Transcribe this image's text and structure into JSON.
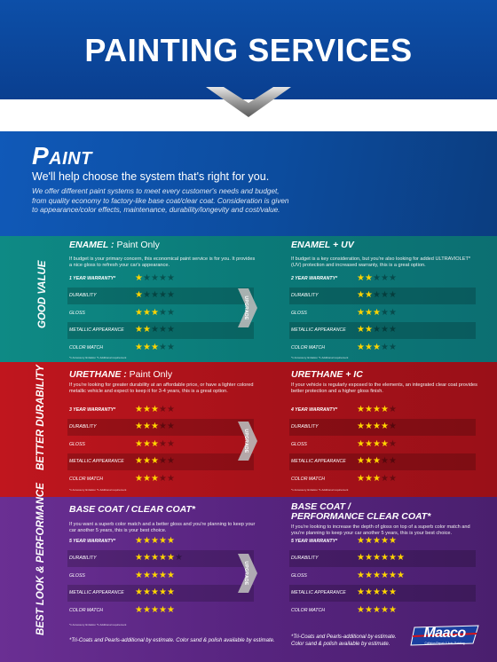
{
  "header": {
    "title": "PAINTING SERVICES"
  },
  "paint": {
    "title": "Paint",
    "subtitle": "We'll help choose the system that's right for you.",
    "description": "We offer different paint systems to meet every customer's needs and budget, from quality economy to factory-like base coat/clear coat. Consideration is given to appearance/color effects, maintenance, durability/longevity and cost/value."
  },
  "upgrade_label": "UPGRADE",
  "sections": {
    "good": {
      "side_label": "GOOD VALUE",
      "left": {
        "title_main": "ENAMEL :",
        "title_thin": " Paint Only",
        "description": "If budget is your primary concern, this economical paint service is for you. It provides a nice gloss to refresh your car's appearance.",
        "fineprint": "*1 Accessory limitation  *1 Additional requirement",
        "rows": [
          {
            "label": "1 YEAR WARRANTY*",
            "bold": true,
            "stars": 1
          },
          {
            "label": "DURABILITY",
            "bold": false,
            "stars": 1
          },
          {
            "label": "GLOSS",
            "bold": false,
            "stars": 3
          },
          {
            "label": "METALLIC APPEARANCE",
            "bold": false,
            "stars": 2
          },
          {
            "label": "COLOR MATCH",
            "bold": false,
            "stars": 3
          }
        ]
      },
      "right": {
        "title_main": "ENAMEL + UV",
        "title_thin": "",
        "description": "If budget is a key consideration, but you're also looking for added ULTRAVIOLET* (UV) protection and increased warranty, this is a great option.",
        "fineprint": "*1 Accessory limitation  *1 Additional requirement",
        "rows": [
          {
            "label": "2 YEAR WARRANTY*",
            "bold": true,
            "stars": 2
          },
          {
            "label": "DURABILITY",
            "bold": false,
            "stars": 2
          },
          {
            "label": "GLOSS",
            "bold": false,
            "stars": 3
          },
          {
            "label": "METALLIC APPEARANCE",
            "bold": false,
            "stars": 2
          },
          {
            "label": "COLOR MATCH",
            "bold": false,
            "stars": 3
          }
        ]
      }
    },
    "better": {
      "side_label": "BETTER DURABILITY",
      "left": {
        "title_main": "URETHANE :",
        "title_thin": " Paint Only",
        "description": "If you're looking for greater durability at an affordable price, or have a lighter colored metallic vehicle and expect to keep it for 3-4 years, this is a great option.",
        "fineprint": "*1 Accessory limitation  *1 Additional requirement",
        "rows": [
          {
            "label": "3 YEAR WARRANTY*",
            "bold": true,
            "stars": 3
          },
          {
            "label": "DURABILITY",
            "bold": false,
            "stars": 3
          },
          {
            "label": "GLOSS",
            "bold": false,
            "stars": 3
          },
          {
            "label": "METALLIC APPEARANCE",
            "bold": false,
            "stars": 3
          },
          {
            "label": "COLOR MATCH",
            "bold": false,
            "stars": 3
          }
        ]
      },
      "right": {
        "title_main": "URETHANE + IC",
        "title_thin": "",
        "description": "If your vehicle is regularly exposed to the elements, an integrated clear coat provides better protection and a higher gloss finish.",
        "fineprint": "*1 Accessory limitation  *1 Additional requirement",
        "rows": [
          {
            "label": "4 YEAR WARRANTY*",
            "bold": true,
            "stars": 4
          },
          {
            "label": "DURABILITY",
            "bold": false,
            "stars": 4
          },
          {
            "label": "GLOSS",
            "bold": false,
            "stars": 4
          },
          {
            "label": "METALLIC APPEARANCE",
            "bold": false,
            "stars": 3
          },
          {
            "label": "COLOR MATCH",
            "bold": false,
            "stars": 3
          }
        ]
      }
    },
    "best": {
      "side_label": "BEST LOOK & PERFORMANCE",
      "left": {
        "title_main": "BASE COAT / CLEAR COAT*",
        "title_line2": "",
        "description": "If you want a superb color match and a better gloss and you're planning to keep your car another 5 years, this is your best choice.",
        "fineprint": "*1 Accessory limitation  *1 Additional requirement",
        "footnote": "*Tri-Coats and Pearls-additional by estimate. Color sand & polish available by estimate.",
        "rows": [
          {
            "label": "5 YEAR WARRANTY*",
            "bold": true,
            "stars": 5,
            "total": 5
          },
          {
            "label": "DURABILITY",
            "bold": false,
            "stars": 5,
            "total": 6
          },
          {
            "label": "GLOSS",
            "bold": false,
            "stars": 5,
            "total": 5
          },
          {
            "label": "METALLIC APPEARANCE",
            "bold": false,
            "stars": 5,
            "total": 5
          },
          {
            "label": "COLOR MATCH",
            "bold": false,
            "stars": 5,
            "total": 5
          }
        ]
      },
      "right": {
        "title_main": "BASE COAT /",
        "title_line2": "PERFORMANCE CLEAR COAT*",
        "description": "If you're looking to increase the depth of gloss on top of a superb color match and you're planning to keep your car another 5 years, this is your best choice.",
        "footnote": "*Tri-Coats and Pearls-additional by estimate. Color sand & polish available by estimate.",
        "rows": [
          {
            "label": "5 YEAR WARRANTY*",
            "bold": true,
            "stars": 5,
            "total": 5
          },
          {
            "label": "DURABILITY",
            "bold": false,
            "stars": 6,
            "total": 6
          },
          {
            "label": "GLOSS",
            "bold": false,
            "stars": 6,
            "total": 6
          },
          {
            "label": "METALLIC APPEARANCE",
            "bold": false,
            "stars": 5,
            "total": 5
          },
          {
            "label": "COLOR MATCH",
            "bold": false,
            "stars": 5,
            "total": 5
          }
        ]
      }
    }
  },
  "logo": {
    "name": "Maaco",
    "tagline": "Collision Repair & Auto Painting",
    "icon": "maaco-logo"
  },
  "colors": {
    "header_blue": "#0d4fa8",
    "good_teal": "#0e8a85",
    "better_red": "#c0161e",
    "best_purple": "#6a2f93",
    "star_yellow": "#ffd400"
  }
}
